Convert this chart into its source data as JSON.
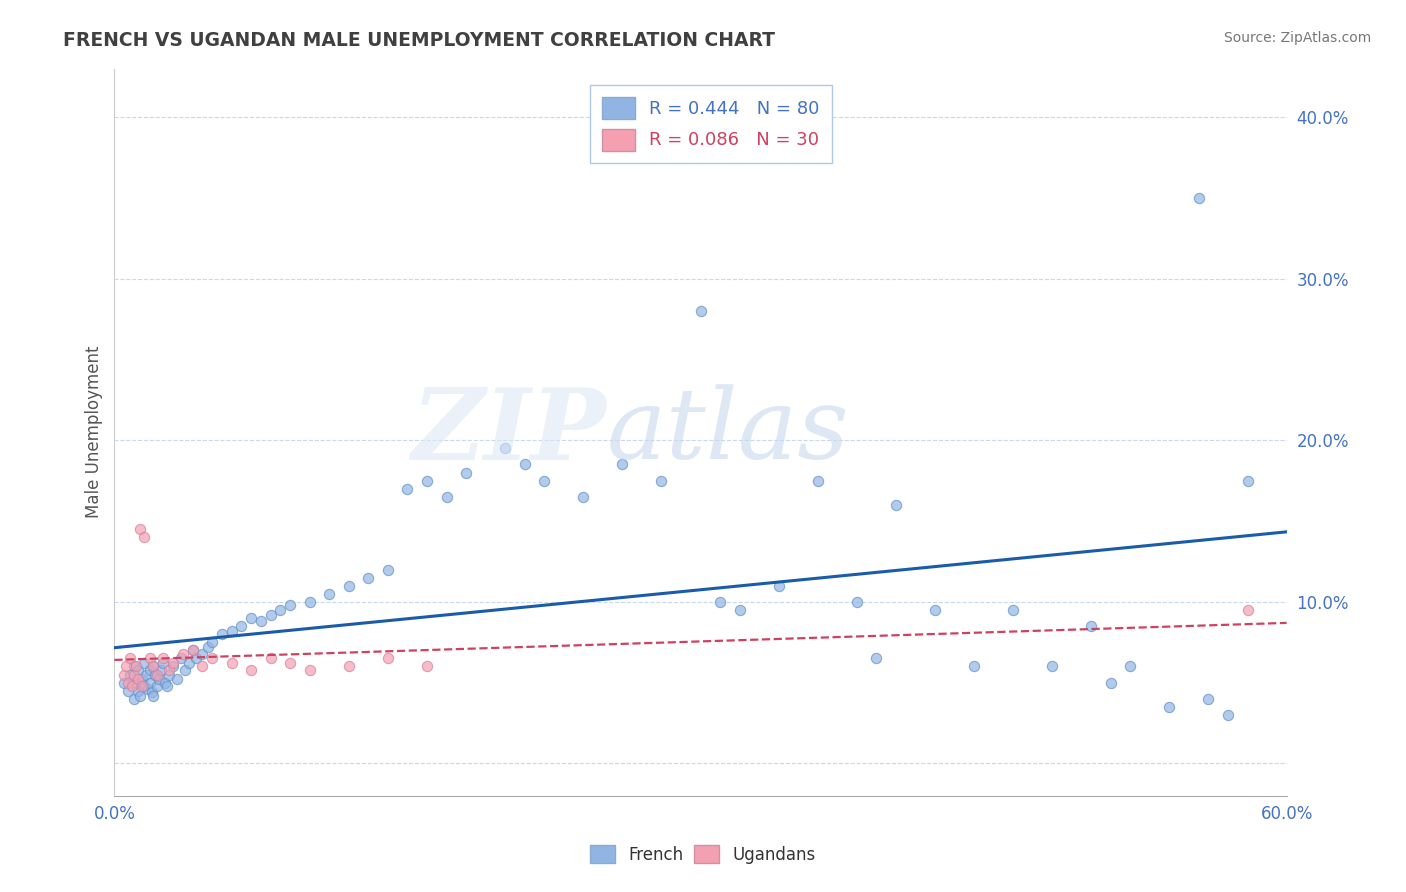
{
  "title": "FRENCH VS UGANDAN MALE UNEMPLOYMENT CORRELATION CHART",
  "source": "Source: ZipAtlas.com",
  "ylabel": "Male Unemployment",
  "xlim": [
    0.0,
    0.6
  ],
  "ylim": [
    -0.02,
    0.43
  ],
  "french_color": "#92b4e3",
  "ugandan_color": "#f4a0b0",
  "french_line_color": "#1a5ca8",
  "ugandan_line_color": "#d04060",
  "legend_french_R": "0.444",
  "legend_french_N": "80",
  "legend_ugandan_R": "0.086",
  "legend_ugandan_N": "30",
  "french_x": [
    0.005,
    0.007,
    0.008,
    0.01,
    0.01,
    0.011,
    0.012,
    0.012,
    0.013,
    0.014,
    0.015,
    0.015,
    0.016,
    0.017,
    0.018,
    0.018,
    0.019,
    0.02,
    0.02,
    0.021,
    0.022,
    0.023,
    0.024,
    0.025,
    0.026,
    0.027,
    0.028,
    0.03,
    0.032,
    0.034,
    0.036,
    0.038,
    0.04,
    0.042,
    0.045,
    0.048,
    0.05,
    0.055,
    0.06,
    0.065,
    0.07,
    0.075,
    0.08,
    0.085,
    0.09,
    0.1,
    0.11,
    0.12,
    0.13,
    0.14,
    0.15,
    0.16,
    0.17,
    0.18,
    0.2,
    0.21,
    0.22,
    0.24,
    0.26,
    0.28,
    0.3,
    0.31,
    0.32,
    0.34,
    0.36,
    0.38,
    0.39,
    0.4,
    0.42,
    0.44,
    0.46,
    0.48,
    0.5,
    0.51,
    0.52,
    0.54,
    0.555,
    0.56,
    0.57,
    0.58
  ],
  "french_y": [
    0.05,
    0.045,
    0.055,
    0.06,
    0.04,
    0.05,
    0.045,
    0.058,
    0.042,
    0.052,
    0.048,
    0.062,
    0.055,
    0.046,
    0.058,
    0.05,
    0.044,
    0.06,
    0.042,
    0.055,
    0.048,
    0.052,
    0.058,
    0.062,
    0.05,
    0.048,
    0.055,
    0.06,
    0.052,
    0.065,
    0.058,
    0.062,
    0.07,
    0.065,
    0.068,
    0.072,
    0.075,
    0.08,
    0.082,
    0.085,
    0.09,
    0.088,
    0.092,
    0.095,
    0.098,
    0.1,
    0.105,
    0.11,
    0.115,
    0.12,
    0.17,
    0.175,
    0.165,
    0.18,
    0.195,
    0.185,
    0.175,
    0.165,
    0.185,
    0.175,
    0.28,
    0.1,
    0.095,
    0.11,
    0.175,
    0.1,
    0.065,
    0.16,
    0.095,
    0.06,
    0.095,
    0.06,
    0.085,
    0.05,
    0.06,
    0.035,
    0.35,
    0.04,
    0.03,
    0.175
  ],
  "ugandan_x": [
    0.005,
    0.006,
    0.007,
    0.008,
    0.009,
    0.01,
    0.011,
    0.012,
    0.013,
    0.014,
    0.015,
    0.018,
    0.02,
    0.022,
    0.025,
    0.028,
    0.03,
    0.035,
    0.04,
    0.045,
    0.05,
    0.06,
    0.07,
    0.08,
    0.09,
    0.1,
    0.12,
    0.14,
    0.16,
    0.58
  ],
  "ugandan_y": [
    0.055,
    0.06,
    0.05,
    0.065,
    0.048,
    0.055,
    0.06,
    0.052,
    0.145,
    0.048,
    0.14,
    0.065,
    0.06,
    0.055,
    0.065,
    0.058,
    0.062,
    0.068,
    0.07,
    0.06,
    0.065,
    0.062,
    0.058,
    0.065,
    0.062,
    0.058,
    0.06,
    0.065,
    0.06,
    0.095
  ]
}
